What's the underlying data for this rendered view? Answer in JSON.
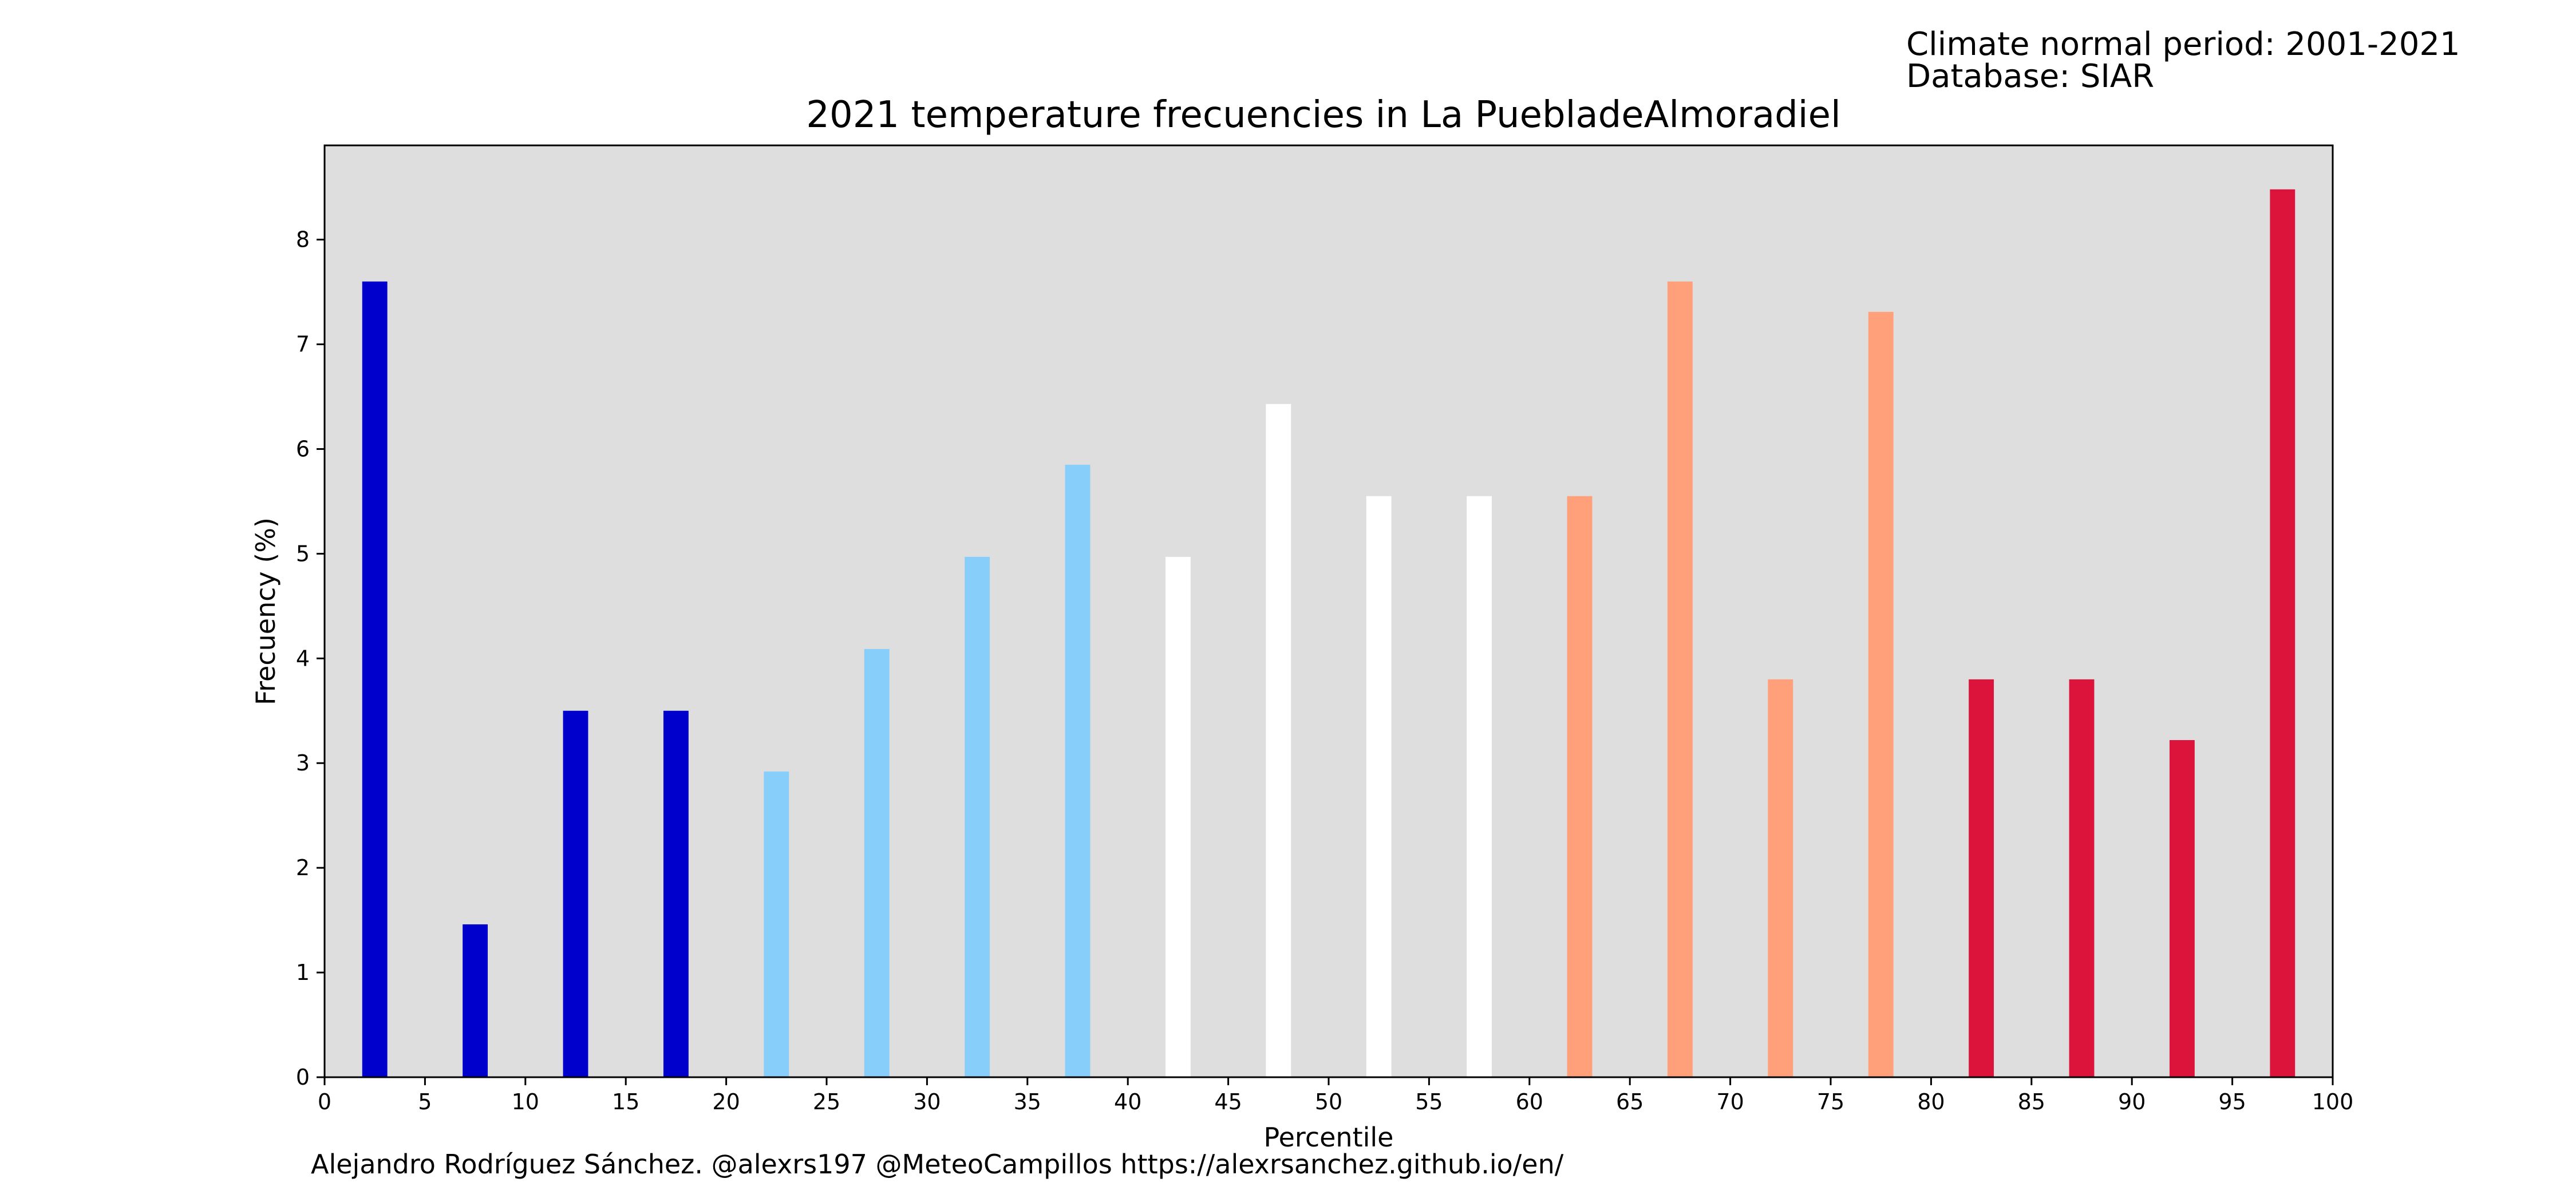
{
  "info": {
    "line1": "Climate normal period: 2001-2021",
    "line2": "Database: SIAR"
  },
  "footer": {
    "credits": "Alejandro Rodríguez Sánchez. @alexrs197 @MeteoCampillos   https://alexrsanchez.github.io/en/"
  },
  "colors": {
    "plot_background": "#dedede",
    "very_cold": "#0000cd",
    "cold": "#87cefa",
    "normal": "#ffffff",
    "warm": "#ffa07a",
    "very_warm": "#dc143c"
  },
  "chart_data": {
    "type": "bar",
    "title": "2021 temperature frecuencies in La PuebladeAlmoradiel",
    "xlabel": "Percentile",
    "ylabel": "Frecuency (%)",
    "xlim": [
      0,
      100
    ],
    "ylim": [
      0,
      8.9
    ],
    "grid": false,
    "xticks": [
      0,
      5,
      10,
      15,
      20,
      25,
      30,
      35,
      40,
      45,
      50,
      55,
      60,
      65,
      70,
      75,
      80,
      85,
      90,
      95,
      100
    ],
    "yticks": [
      0,
      1,
      2,
      3,
      4,
      5,
      6,
      7,
      8
    ],
    "bar_width": 1.25,
    "x": [
      2.5,
      7.5,
      12.5,
      17.5,
      22.5,
      27.5,
      32.5,
      37.5,
      42.5,
      47.5,
      52.5,
      57.5,
      62.5,
      67.5,
      72.5,
      77.5,
      82.5,
      87.5,
      92.5,
      97.5
    ],
    "values": [
      7.6,
      1.46,
      3.5,
      3.5,
      2.92,
      4.09,
      4.97,
      5.85,
      4.97,
      6.43,
      5.55,
      5.55,
      5.55,
      7.6,
      3.8,
      7.31,
      3.8,
      3.8,
      3.22,
      8.48
    ],
    "bar_colors": [
      "#0000cd",
      "#0000cd",
      "#0000cd",
      "#0000cd",
      "#87cefa",
      "#87cefa",
      "#87cefa",
      "#87cefa",
      "#ffffff",
      "#ffffff",
      "#ffffff",
      "#ffffff",
      "#ffa07a",
      "#ffa07a",
      "#ffa07a",
      "#ffa07a",
      "#dc143c",
      "#dc143c",
      "#dc143c",
      "#dc143c"
    ]
  }
}
